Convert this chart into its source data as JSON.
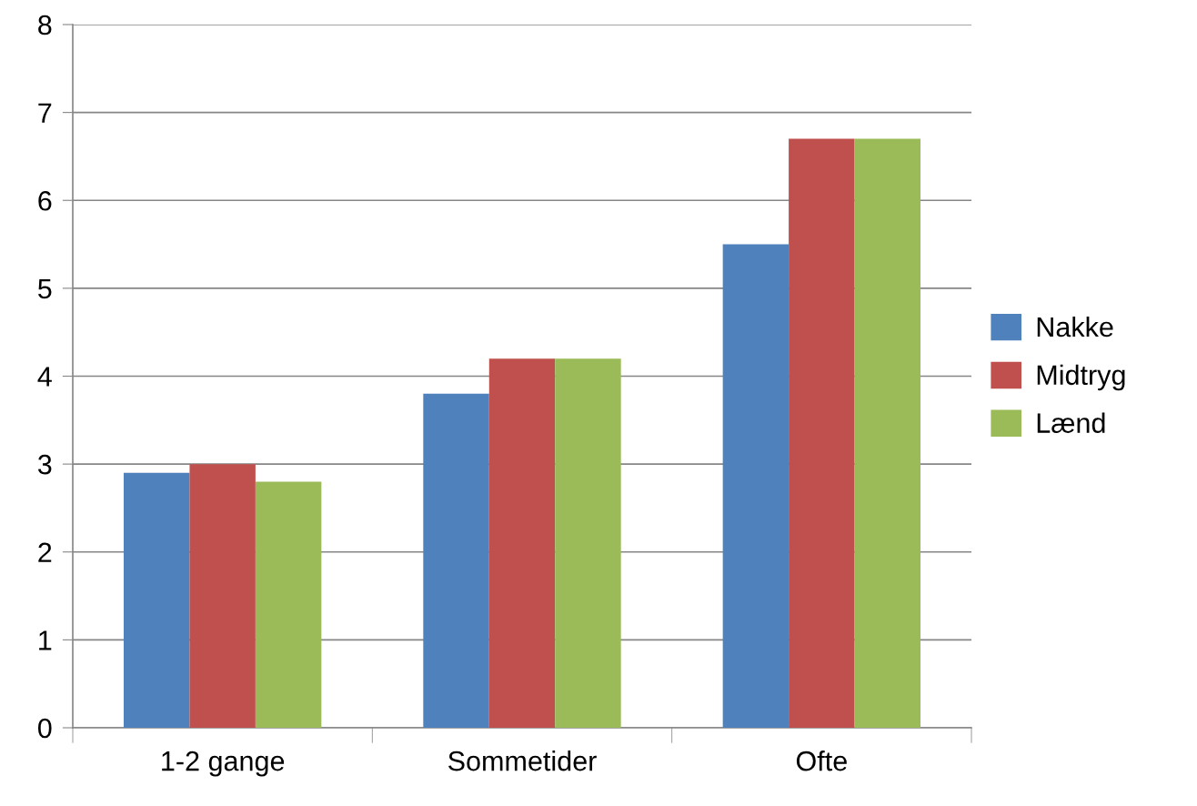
{
  "chart_data": {
    "type": "bar",
    "categories": [
      "1-2 gange",
      "Sommetider",
      "Ofte"
    ],
    "series": [
      {
        "name": "Nakke",
        "color": "#4f81bd",
        "values": [
          2.9,
          3.8,
          5.5
        ]
      },
      {
        "name": "Midtryg",
        "color": "#c0504d",
        "values": [
          3.0,
          4.2,
          6.7
        ]
      },
      {
        "name": "Lænd",
        "color": "#9bbb59",
        "values": [
          2.8,
          4.2,
          6.7
        ]
      }
    ],
    "ylim": [
      0,
      8
    ],
    "yticks": [
      0,
      1,
      2,
      3,
      4,
      5,
      6,
      7,
      8
    ],
    "grid": "y",
    "legend": "right"
  }
}
